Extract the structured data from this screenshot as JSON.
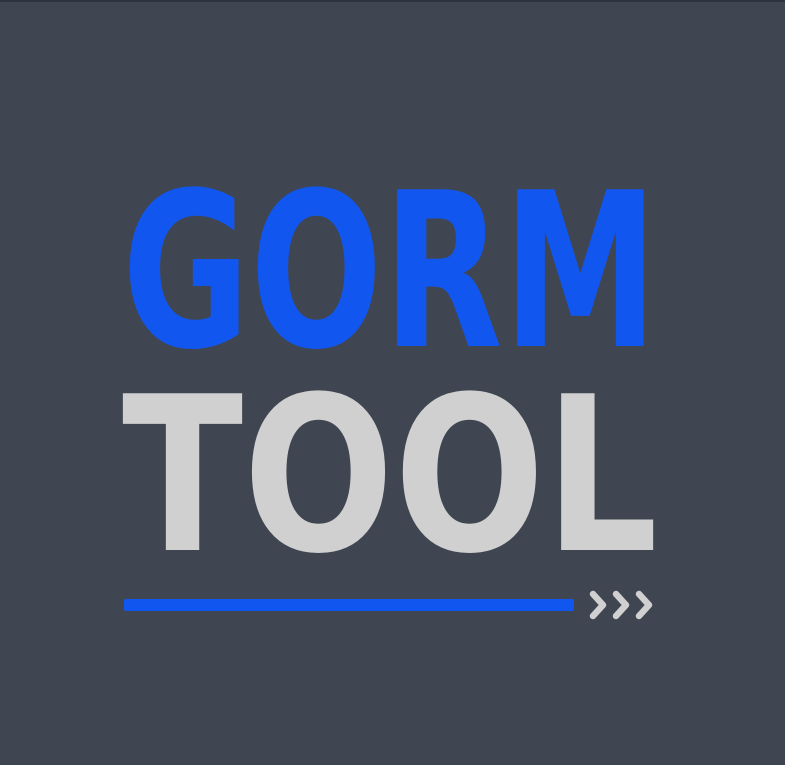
{
  "logo": {
    "line1": "GORM",
    "line2": "TOOL",
    "colors": {
      "background": "#3f4651",
      "primary": "#1256f0",
      "secondary": "#d0d0d0"
    }
  }
}
